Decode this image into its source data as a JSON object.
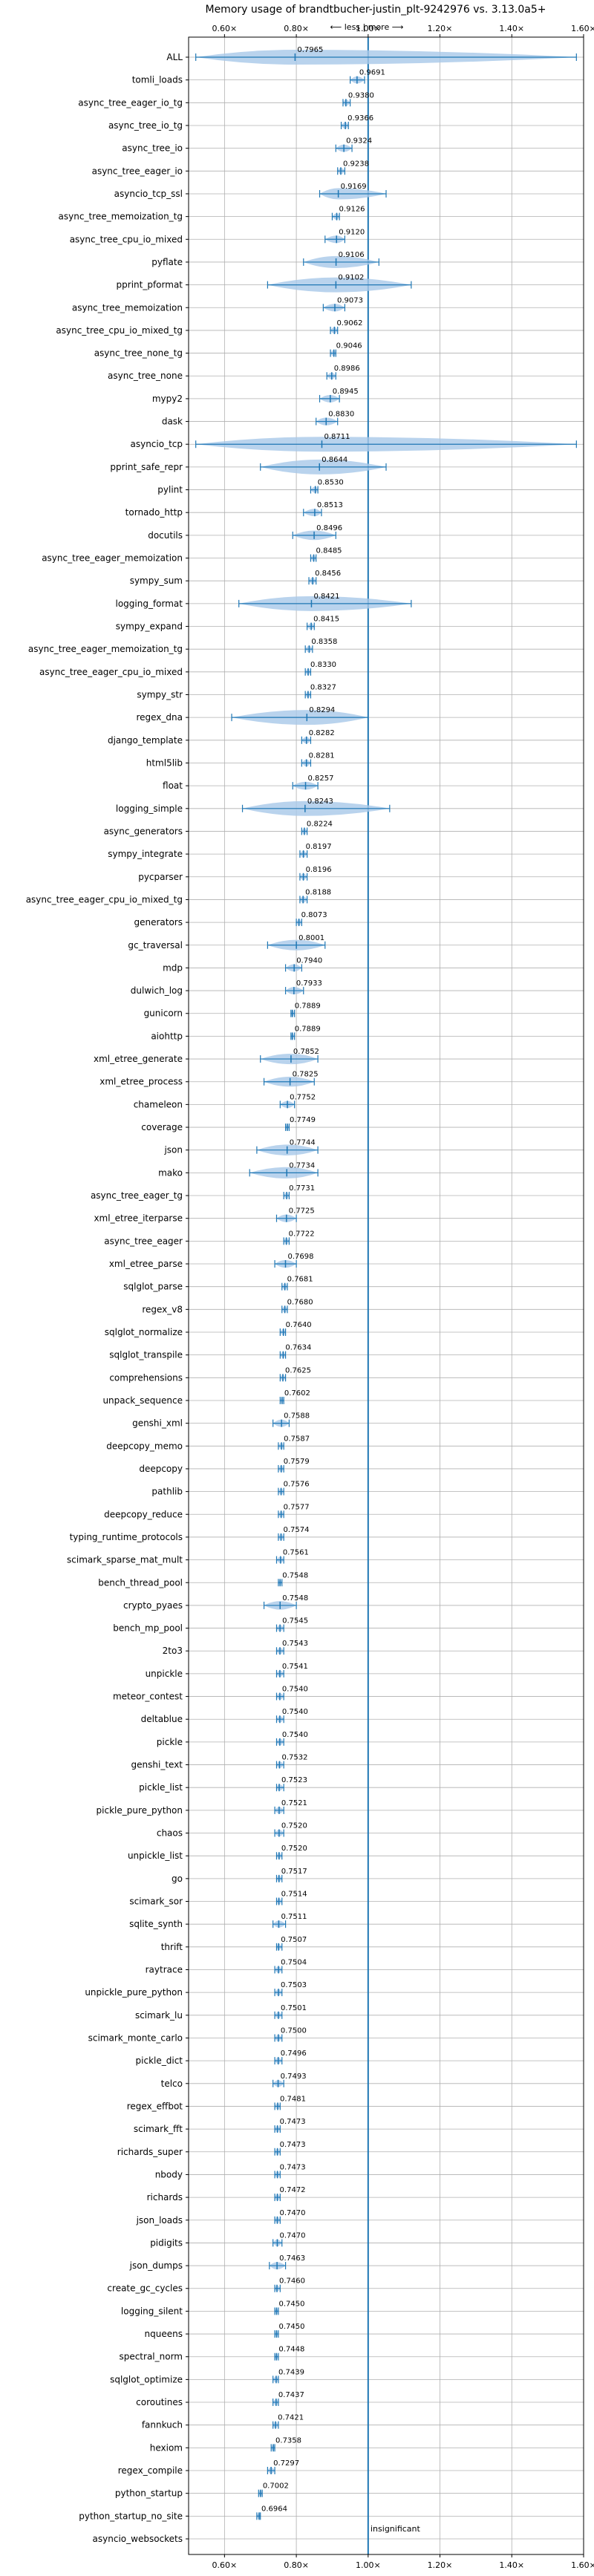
{
  "chart_data": {
    "type": "violin",
    "title": "Memory usage of brandtbucher-justin_plt-9242976 vs. 3.13.0a5+",
    "direction_label": "⟵ less | more ⟶",
    "threshold_label": "insignificant",
    "xlim": [
      0.5,
      1.6
    ],
    "xticks": [
      0.6,
      0.8,
      1.0,
      1.2,
      1.4,
      1.6
    ],
    "xtick_labels": [
      "0.60×",
      "0.80×",
      "1.00×",
      "1.20×",
      "1.40×",
      "1.60×"
    ],
    "grid": true,
    "colors": {
      "violin": "#a8c8e8",
      "line": "#1f77b4",
      "mean": "#d62728",
      "reference": "#1f77b4"
    },
    "benchmarks": [
      {
        "name": "ALL",
        "mean": 0.7965,
        "value_label": "0.7965",
        "min": 0.52,
        "max": 1.58
      },
      {
        "name": "tomli_loads",
        "mean": 0.9691,
        "value_label": "0.9691",
        "min": 0.95,
        "max": 0.99
      },
      {
        "name": "async_tree_eager_io_tg",
        "mean": 0.938,
        "value_label": "0.9380",
        "min": 0.93,
        "max": 0.95
      },
      {
        "name": "async_tree_io_tg",
        "mean": 0.9366,
        "value_label": "0.9366",
        "min": 0.925,
        "max": 0.945
      },
      {
        "name": "async_tree_io",
        "mean": 0.9324,
        "value_label": "0.9324",
        "min": 0.91,
        "max": 0.955
      },
      {
        "name": "async_tree_eager_io",
        "mean": 0.9238,
        "value_label": "0.9238",
        "min": 0.915,
        "max": 0.935
      },
      {
        "name": "asyncio_tcp_ssl",
        "mean": 0.9169,
        "value_label": "0.9169",
        "min": 0.865,
        "max": 1.05
      },
      {
        "name": "async_tree_memoization_tg",
        "mean": 0.9126,
        "value_label": "0.9126",
        "min": 0.9,
        "max": 0.92
      },
      {
        "name": "async_tree_cpu_io_mixed",
        "mean": 0.912,
        "value_label": "0.9120",
        "min": 0.88,
        "max": 0.935
      },
      {
        "name": "pyflate",
        "mean": 0.9106,
        "value_label": "0.9106",
        "min": 0.82,
        "max": 1.03
      },
      {
        "name": "pprint_pformat",
        "mean": 0.9102,
        "value_label": "0.9102",
        "min": 0.72,
        "max": 1.12
      },
      {
        "name": "async_tree_memoization",
        "mean": 0.9073,
        "value_label": "0.9073",
        "min": 0.875,
        "max": 0.935
      },
      {
        "name": "async_tree_cpu_io_mixed_tg",
        "mean": 0.9062,
        "value_label": "0.9062",
        "min": 0.895,
        "max": 0.915
      },
      {
        "name": "async_tree_none_tg",
        "mean": 0.9046,
        "value_label": "0.9046",
        "min": 0.895,
        "max": 0.91
      },
      {
        "name": "async_tree_none",
        "mean": 0.8986,
        "value_label": "0.8986",
        "min": 0.885,
        "max": 0.91
      },
      {
        "name": "mypy2",
        "mean": 0.8945,
        "value_label": "0.8945",
        "min": 0.865,
        "max": 0.92
      },
      {
        "name": "dask",
        "mean": 0.883,
        "value_label": "0.8830",
        "min": 0.855,
        "max": 0.915
      },
      {
        "name": "asyncio_tcp",
        "mean": 0.8711,
        "value_label": "0.8711",
        "min": 0.52,
        "max": 1.58
      },
      {
        "name": "pprint_safe_repr",
        "mean": 0.8644,
        "value_label": "0.8644",
        "min": 0.7,
        "max": 1.05
      },
      {
        "name": "pylint",
        "mean": 0.853,
        "value_label": "0.8530",
        "min": 0.84,
        "max": 0.86
      },
      {
        "name": "tornado_http",
        "mean": 0.8513,
        "value_label": "0.8513",
        "min": 0.82,
        "max": 0.87
      },
      {
        "name": "docutils",
        "mean": 0.8496,
        "value_label": "0.8496",
        "min": 0.79,
        "max": 0.91
      },
      {
        "name": "async_tree_eager_memoization",
        "mean": 0.8485,
        "value_label": "0.8485",
        "min": 0.84,
        "max": 0.855
      },
      {
        "name": "sympy_sum",
        "mean": 0.8456,
        "value_label": "0.8456",
        "min": 0.835,
        "max": 0.855
      },
      {
        "name": "logging_format",
        "mean": 0.8421,
        "value_label": "0.8421",
        "min": 0.64,
        "max": 1.12
      },
      {
        "name": "sympy_expand",
        "mean": 0.8415,
        "value_label": "0.8415",
        "min": 0.83,
        "max": 0.85
      },
      {
        "name": "async_tree_eager_memoization_tg",
        "mean": 0.8358,
        "value_label": "0.8358",
        "min": 0.825,
        "max": 0.845
      },
      {
        "name": "async_tree_eager_cpu_io_mixed",
        "mean": 0.833,
        "value_label": "0.8330",
        "min": 0.825,
        "max": 0.84
      },
      {
        "name": "sympy_str",
        "mean": 0.8327,
        "value_label": "0.8327",
        "min": 0.825,
        "max": 0.84
      },
      {
        "name": "regex_dna",
        "mean": 0.8294,
        "value_label": "0.8294",
        "min": 0.62,
        "max": 1.0
      },
      {
        "name": "django_template",
        "mean": 0.8282,
        "value_label": "0.8282",
        "min": 0.815,
        "max": 0.84
      },
      {
        "name": "html5lib",
        "mean": 0.8281,
        "value_label": "0.8281",
        "min": 0.815,
        "max": 0.84
      },
      {
        "name": "float",
        "mean": 0.8257,
        "value_label": "0.8257",
        "min": 0.79,
        "max": 0.86
      },
      {
        "name": "logging_simple",
        "mean": 0.8243,
        "value_label": "0.8243",
        "min": 0.65,
        "max": 1.06
      },
      {
        "name": "async_generators",
        "mean": 0.8224,
        "value_label": "0.8224",
        "min": 0.815,
        "max": 0.83
      },
      {
        "name": "sympy_integrate",
        "mean": 0.8197,
        "value_label": "0.8197",
        "min": 0.81,
        "max": 0.83
      },
      {
        "name": "pycparser",
        "mean": 0.8196,
        "value_label": "0.8196",
        "min": 0.81,
        "max": 0.83
      },
      {
        "name": "async_tree_eager_cpu_io_mixed_tg",
        "mean": 0.8188,
        "value_label": "0.8188",
        "min": 0.81,
        "max": 0.83
      },
      {
        "name": "generators",
        "mean": 0.8073,
        "value_label": "0.8073",
        "min": 0.8,
        "max": 0.815
      },
      {
        "name": "gc_traversal",
        "mean": 0.8001,
        "value_label": "0.8001",
        "min": 0.72,
        "max": 0.88
      },
      {
        "name": "mdp",
        "mean": 0.794,
        "value_label": "0.7940",
        "min": 0.77,
        "max": 0.815
      },
      {
        "name": "dulwich_log",
        "mean": 0.7933,
        "value_label": "0.7933",
        "min": 0.77,
        "max": 0.82
      },
      {
        "name": "gunicorn",
        "mean": 0.7889,
        "value_label": "0.7889",
        "min": 0.785,
        "max": 0.795
      },
      {
        "name": "aiohttp",
        "mean": 0.7889,
        "value_label": "0.7889",
        "min": 0.785,
        "max": 0.795
      },
      {
        "name": "xml_etree_generate",
        "mean": 0.7852,
        "value_label": "0.7852",
        "min": 0.7,
        "max": 0.86
      },
      {
        "name": "xml_etree_process",
        "mean": 0.7825,
        "value_label": "0.7825",
        "min": 0.71,
        "max": 0.85
      },
      {
        "name": "chameleon",
        "mean": 0.7752,
        "value_label": "0.7752",
        "min": 0.755,
        "max": 0.795
      },
      {
        "name": "coverage",
        "mean": 0.7749,
        "value_label": "0.7749",
        "min": 0.77,
        "max": 0.78
      },
      {
        "name": "json",
        "mean": 0.7744,
        "value_label": "0.7744",
        "min": 0.69,
        "max": 0.86
      },
      {
        "name": "mako",
        "mean": 0.7734,
        "value_label": "0.7734",
        "min": 0.67,
        "max": 0.86
      },
      {
        "name": "async_tree_eager_tg",
        "mean": 0.7731,
        "value_label": "0.7731",
        "min": 0.765,
        "max": 0.78
      },
      {
        "name": "xml_etree_iterparse",
        "mean": 0.7725,
        "value_label": "0.7725",
        "min": 0.745,
        "max": 0.8
      },
      {
        "name": "async_tree_eager",
        "mean": 0.7722,
        "value_label": "0.7722",
        "min": 0.765,
        "max": 0.78
      },
      {
        "name": "xml_etree_parse",
        "mean": 0.7698,
        "value_label": "0.7698",
        "min": 0.74,
        "max": 0.8
      },
      {
        "name": "sqlglot_parse",
        "mean": 0.7681,
        "value_label": "0.7681",
        "min": 0.76,
        "max": 0.775
      },
      {
        "name": "regex_v8",
        "mean": 0.768,
        "value_label": "0.7680",
        "min": 0.76,
        "max": 0.775
      },
      {
        "name": "sqlglot_normalize",
        "mean": 0.764,
        "value_label": "0.7640",
        "min": 0.755,
        "max": 0.77
      },
      {
        "name": "sqlglot_transpile",
        "mean": 0.7634,
        "value_label": "0.7634",
        "min": 0.755,
        "max": 0.77
      },
      {
        "name": "comprehensions",
        "mean": 0.7625,
        "value_label": "0.7625",
        "min": 0.755,
        "max": 0.77
      },
      {
        "name": "unpack_sequence",
        "mean": 0.7602,
        "value_label": "0.7602",
        "min": 0.755,
        "max": 0.765
      },
      {
        "name": "genshi_xml",
        "mean": 0.7588,
        "value_label": "0.7588",
        "min": 0.735,
        "max": 0.78
      },
      {
        "name": "deepcopy_memo",
        "mean": 0.7587,
        "value_label": "0.7587",
        "min": 0.75,
        "max": 0.765
      },
      {
        "name": "deepcopy",
        "mean": 0.7579,
        "value_label": "0.7579",
        "min": 0.75,
        "max": 0.765
      },
      {
        "name": "pathlib",
        "mean": 0.7576,
        "value_label": "0.7576",
        "min": 0.75,
        "max": 0.765
      },
      {
        "name": "deepcopy_reduce",
        "mean": 0.7577,
        "value_label": "0.7577",
        "min": 0.75,
        "max": 0.765
      },
      {
        "name": "typing_runtime_protocols",
        "mean": 0.7574,
        "value_label": "0.7574",
        "min": 0.75,
        "max": 0.765
      },
      {
        "name": "scimark_sparse_mat_mult",
        "mean": 0.7561,
        "value_label": "0.7561",
        "min": 0.745,
        "max": 0.765
      },
      {
        "name": "bench_thread_pool",
        "mean": 0.7548,
        "value_label": "0.7548",
        "min": 0.75,
        "max": 0.76
      },
      {
        "name": "crypto_pyaes",
        "mean": 0.7548,
        "value_label": "0.7548",
        "min": 0.71,
        "max": 0.8
      },
      {
        "name": "bench_mp_pool",
        "mean": 0.7545,
        "value_label": "0.7545",
        "min": 0.745,
        "max": 0.765
      },
      {
        "name": "2to3",
        "mean": 0.7543,
        "value_label": "0.7543",
        "min": 0.745,
        "max": 0.765
      },
      {
        "name": "unpickle",
        "mean": 0.7541,
        "value_label": "0.7541",
        "min": 0.745,
        "max": 0.765
      },
      {
        "name": "meteor_contest",
        "mean": 0.754,
        "value_label": "0.7540",
        "min": 0.745,
        "max": 0.765
      },
      {
        "name": "deltablue",
        "mean": 0.754,
        "value_label": "0.7540",
        "min": 0.745,
        "max": 0.765
      },
      {
        "name": "pickle",
        "mean": 0.754,
        "value_label": "0.7540",
        "min": 0.745,
        "max": 0.765
      },
      {
        "name": "genshi_text",
        "mean": 0.7532,
        "value_label": "0.7532",
        "min": 0.745,
        "max": 0.765
      },
      {
        "name": "pickle_list",
        "mean": 0.7523,
        "value_label": "0.7523",
        "min": 0.745,
        "max": 0.765
      },
      {
        "name": "pickle_pure_python",
        "mean": 0.7521,
        "value_label": "0.7521",
        "min": 0.74,
        "max": 0.765
      },
      {
        "name": "chaos",
        "mean": 0.752,
        "value_label": "0.7520",
        "min": 0.74,
        "max": 0.765
      },
      {
        "name": "unpickle_list",
        "mean": 0.752,
        "value_label": "0.7520",
        "min": 0.745,
        "max": 0.76
      },
      {
        "name": "go",
        "mean": 0.7517,
        "value_label": "0.7517",
        "min": 0.745,
        "max": 0.76
      },
      {
        "name": "scimark_sor",
        "mean": 0.7514,
        "value_label": "0.7514",
        "min": 0.745,
        "max": 0.76
      },
      {
        "name": "sqlite_synth",
        "mean": 0.7511,
        "value_label": "0.7511",
        "min": 0.735,
        "max": 0.77
      },
      {
        "name": "thrift",
        "mean": 0.7507,
        "value_label": "0.7507",
        "min": 0.745,
        "max": 0.76
      },
      {
        "name": "raytrace",
        "mean": 0.7504,
        "value_label": "0.7504",
        "min": 0.74,
        "max": 0.76
      },
      {
        "name": "unpickle_pure_python",
        "mean": 0.7503,
        "value_label": "0.7503",
        "min": 0.74,
        "max": 0.76
      },
      {
        "name": "scimark_lu",
        "mean": 0.7501,
        "value_label": "0.7501",
        "min": 0.74,
        "max": 0.76
      },
      {
        "name": "scimark_monte_carlo",
        "mean": 0.75,
        "value_label": "0.7500",
        "min": 0.74,
        "max": 0.76
      },
      {
        "name": "pickle_dict",
        "mean": 0.7496,
        "value_label": "0.7496",
        "min": 0.74,
        "max": 0.76
      },
      {
        "name": "telco",
        "mean": 0.7493,
        "value_label": "0.7493",
        "min": 0.735,
        "max": 0.765
      },
      {
        "name": "regex_effbot",
        "mean": 0.7481,
        "value_label": "0.7481",
        "min": 0.74,
        "max": 0.755
      },
      {
        "name": "scimark_fft",
        "mean": 0.7473,
        "value_label": "0.7473",
        "min": 0.74,
        "max": 0.755
      },
      {
        "name": "richards_super",
        "mean": 0.7473,
        "value_label": "0.7473",
        "min": 0.74,
        "max": 0.755
      },
      {
        "name": "nbody",
        "mean": 0.7473,
        "value_label": "0.7473",
        "min": 0.74,
        "max": 0.755
      },
      {
        "name": "richards",
        "mean": 0.7472,
        "value_label": "0.7472",
        "min": 0.74,
        "max": 0.755
      },
      {
        "name": "json_loads",
        "mean": 0.747,
        "value_label": "0.7470",
        "min": 0.74,
        "max": 0.755
      },
      {
        "name": "pidigits",
        "mean": 0.747,
        "value_label": "0.7470",
        "min": 0.735,
        "max": 0.76
      },
      {
        "name": "json_dumps",
        "mean": 0.7463,
        "value_label": "0.7463",
        "min": 0.725,
        "max": 0.77
      },
      {
        "name": "create_gc_cycles",
        "mean": 0.746,
        "value_label": "0.7460",
        "min": 0.74,
        "max": 0.755
      },
      {
        "name": "logging_silent",
        "mean": 0.745,
        "value_label": "0.7450",
        "min": 0.74,
        "max": 0.75
      },
      {
        "name": "nqueens",
        "mean": 0.745,
        "value_label": "0.7450",
        "min": 0.74,
        "max": 0.75
      },
      {
        "name": "spectral_norm",
        "mean": 0.7448,
        "value_label": "0.7448",
        "min": 0.74,
        "max": 0.75
      },
      {
        "name": "sqlglot_optimize",
        "mean": 0.7439,
        "value_label": "0.7439",
        "min": 0.735,
        "max": 0.75
      },
      {
        "name": "coroutines",
        "mean": 0.7437,
        "value_label": "0.7437",
        "min": 0.735,
        "max": 0.75
      },
      {
        "name": "fannkuch",
        "mean": 0.7421,
        "value_label": "0.7421",
        "min": 0.735,
        "max": 0.75
      },
      {
        "name": "hexiom",
        "mean": 0.7358,
        "value_label": "0.7358",
        "min": 0.73,
        "max": 0.74
      },
      {
        "name": "regex_compile",
        "mean": 0.7297,
        "value_label": "0.7297",
        "min": 0.72,
        "max": 0.74
      },
      {
        "name": "python_startup",
        "mean": 0.7002,
        "value_label": "0.7002",
        "min": 0.695,
        "max": 0.705
      },
      {
        "name": "python_startup_no_site",
        "mean": 0.6964,
        "value_label": "0.6964",
        "min": 0.69,
        "max": 0.7
      },
      {
        "name": "asyncio_websockets",
        "mean": 1.0,
        "value_label": "",
        "min": 1.0,
        "max": 1.0,
        "insignificant": true
      }
    ]
  }
}
